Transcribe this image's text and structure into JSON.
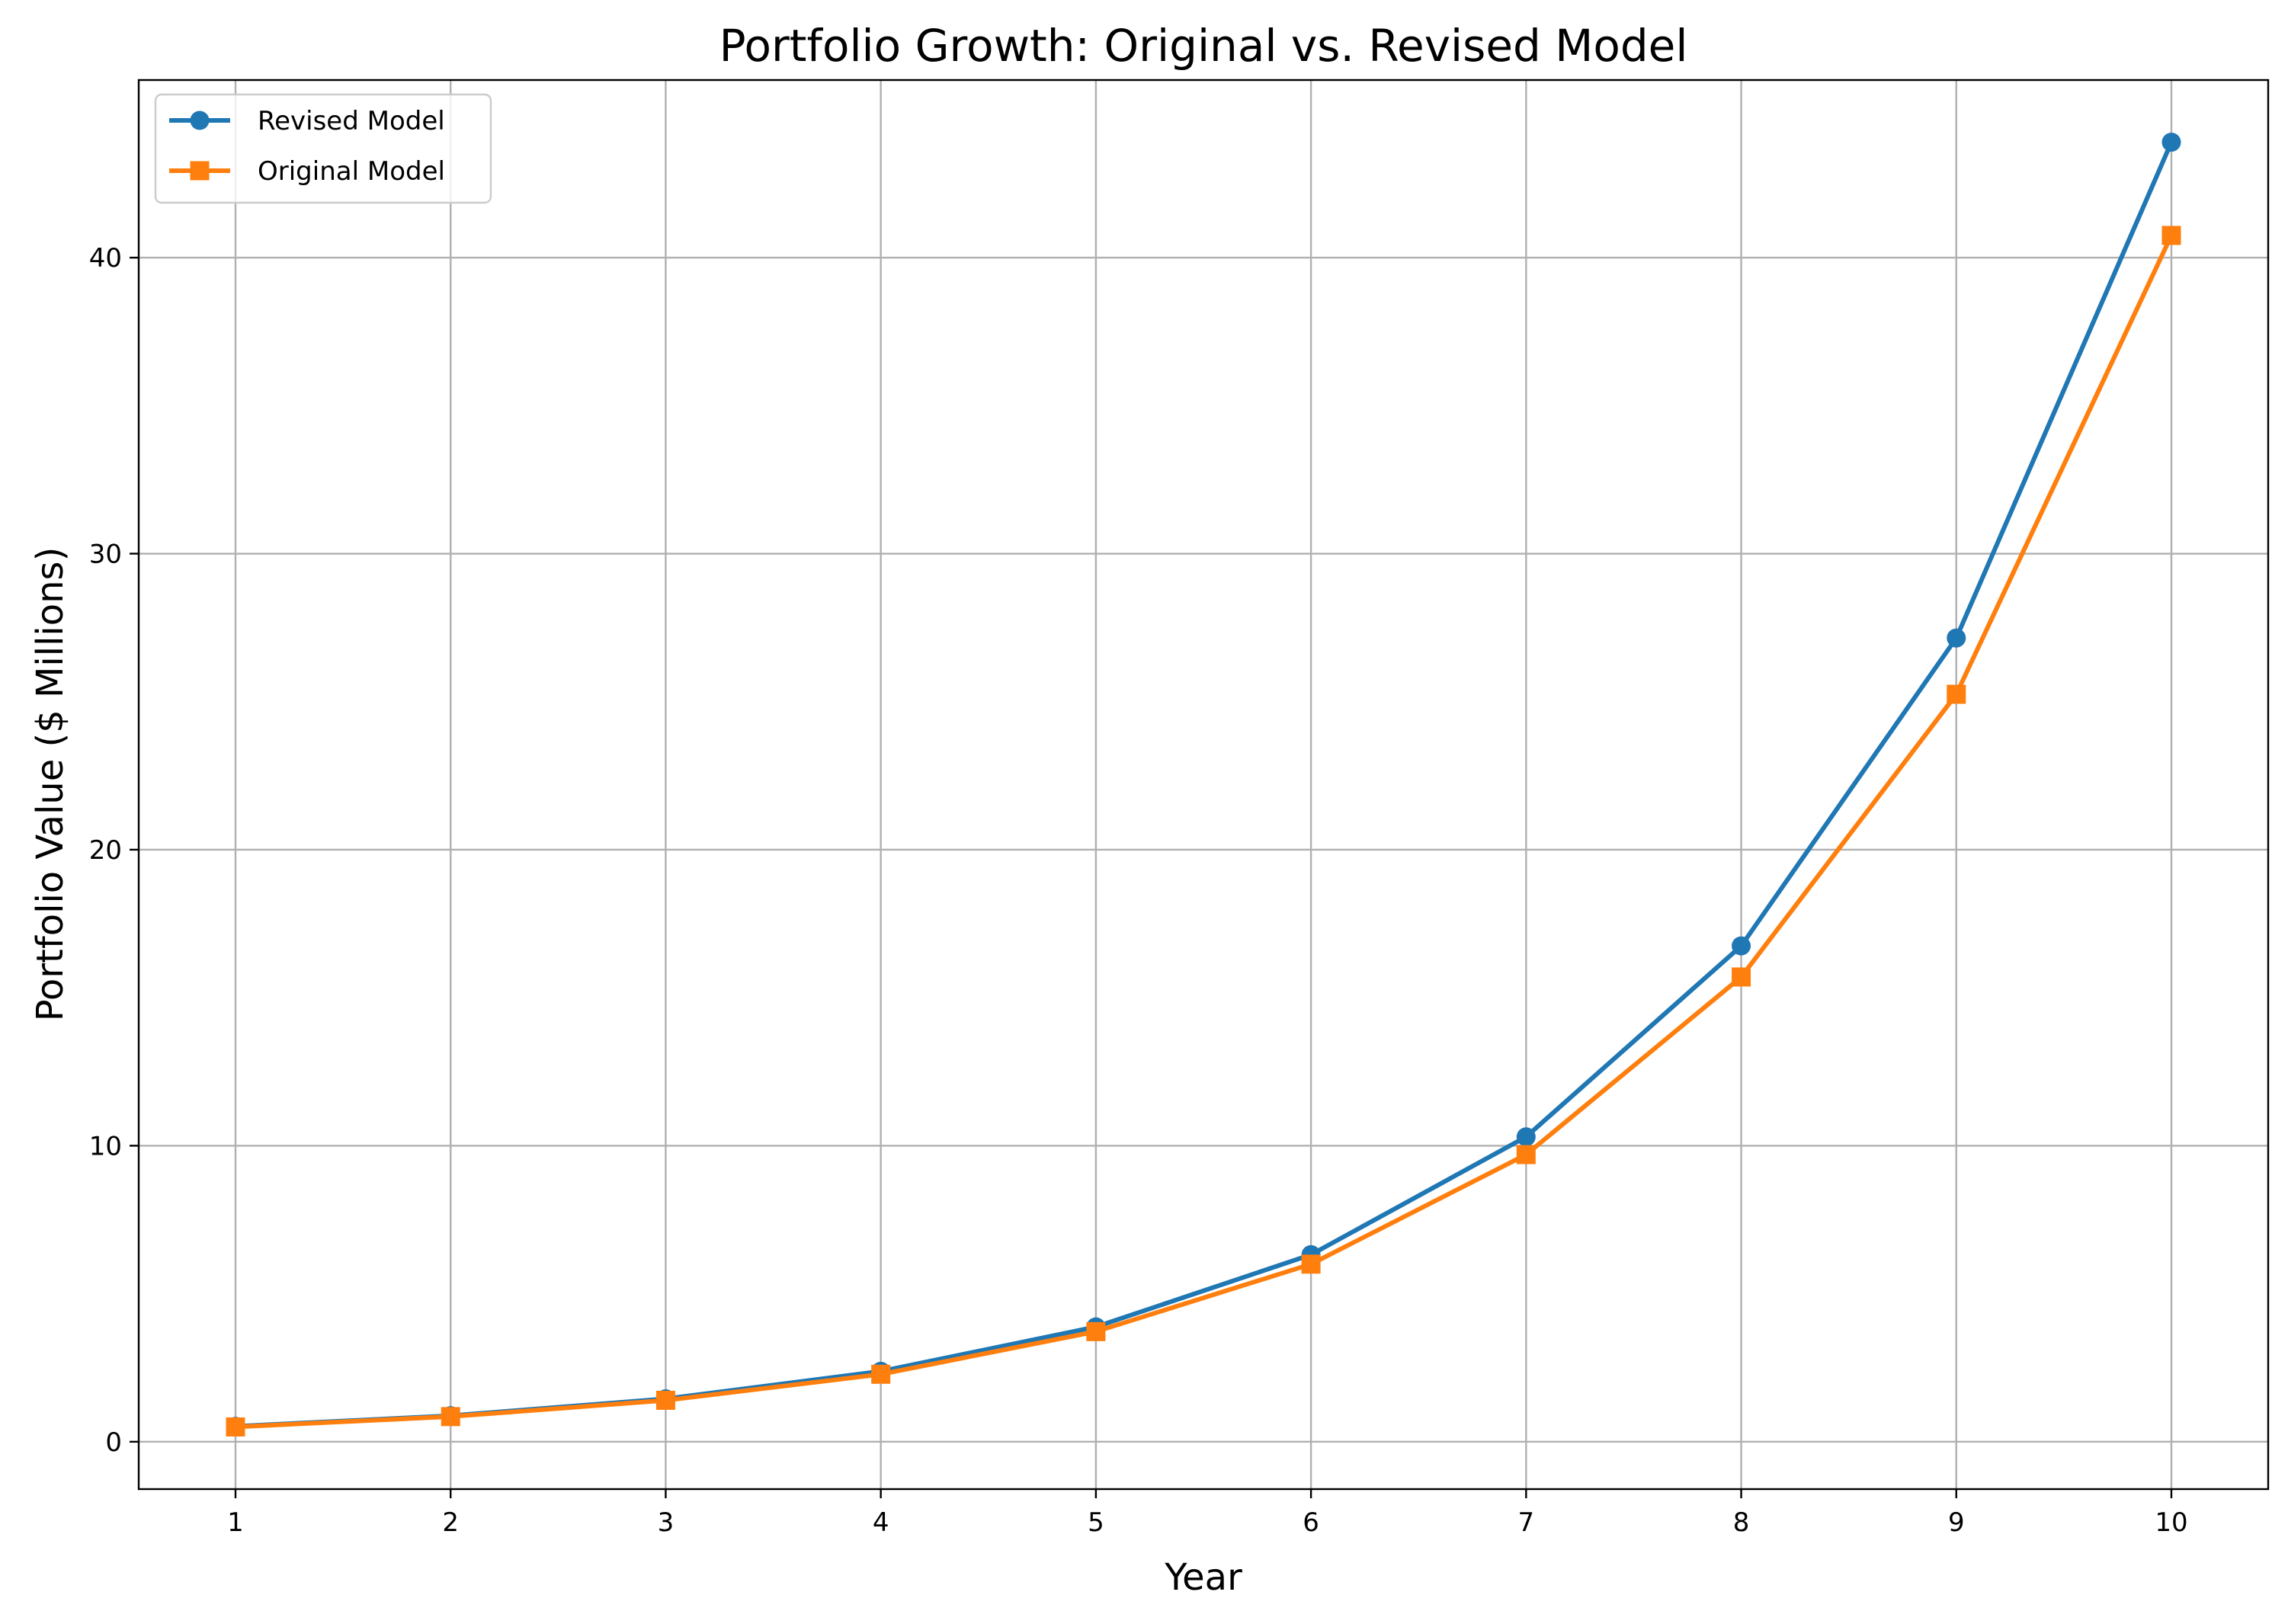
{
  "chart_data": {
    "type": "line",
    "title": "Portfolio Growth: Original vs. Revised Model",
    "xlabel": "Year",
    "ylabel": "Portfolio Value ($ Millions)",
    "x": [
      1,
      2,
      3,
      4,
      5,
      6,
      7,
      8,
      9,
      10
    ],
    "xticks": [
      "1",
      "2",
      "3",
      "4",
      "5",
      "6",
      "7",
      "8",
      "9",
      "10"
    ],
    "yticks": [
      0,
      10,
      20,
      30,
      40
    ],
    "xlim": [
      0.55,
      10.45
    ],
    "ylim": [
      -1.6,
      46.0
    ],
    "grid": true,
    "legend_position": "top-left",
    "series": [
      {
        "name": "Revised Model",
        "color": "#1f77b4",
        "marker": "circle",
        "values": [
          0.52,
          0.88,
          1.45,
          2.38,
          3.88,
          6.32,
          10.3,
          16.75,
          27.15,
          43.9
        ]
      },
      {
        "name": "Original Model",
        "color": "#ff7f0e",
        "marker": "square",
        "values": [
          0.5,
          0.85,
          1.4,
          2.28,
          3.72,
          6.0,
          9.7,
          15.7,
          25.25,
          40.75
        ]
      }
    ]
  }
}
